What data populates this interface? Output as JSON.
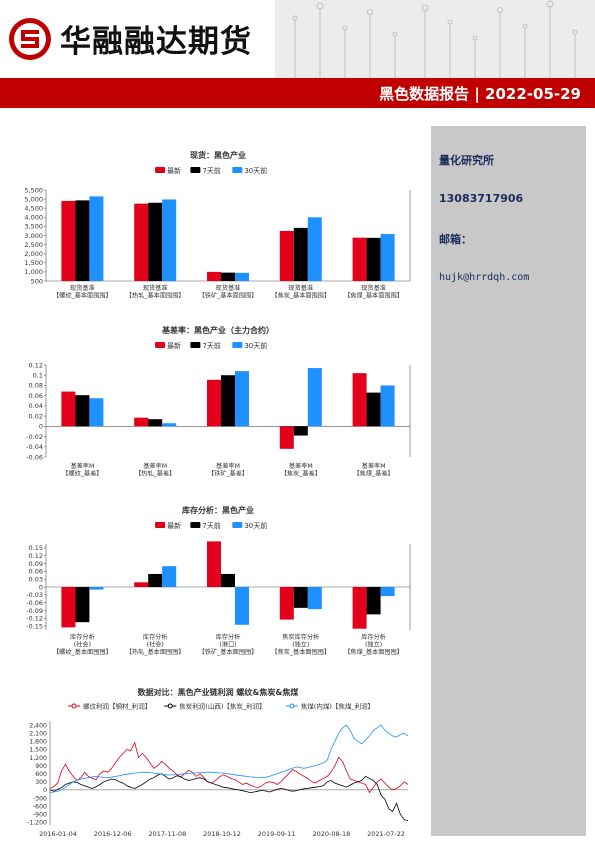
{
  "header": {
    "company": "华融融达期货",
    "report_title": "黑色数据报告 | 2022-05-29"
  },
  "sidebar": {
    "org": "量化研究所",
    "phone": "13083717906",
    "email_label": "邮箱：",
    "email": "hujk@hrrdqh.com"
  },
  "colors": {
    "latest": "#e3001b",
    "d7": "#000000",
    "d30": "#1e90ff",
    "brand_red": "#c00000"
  },
  "charts": [
    {
      "chart_data": {
        "type": "bar",
        "title": "现货：黑色产业",
        "legend": [
          "最新",
          "7天前",
          "30天前"
        ],
        "categories": [
          [
            "现货基准",
            "【螺纹_基本面囤囤】"
          ],
          [
            "现货基准",
            "【热轧_基本面囤囤】"
          ],
          [
            "现货基准",
            "【铁矿_基本面囤囤】"
          ],
          [
            "现货基准",
            "【焦炭_基本面囤囤】"
          ],
          [
            "现货基准",
            "【焦煤_基本面囤囤】"
          ]
        ],
        "series": [
          {
            "name": "最新",
            "values": [
              4900,
              4750,
              1000,
              3250,
              2880
            ]
          },
          {
            "name": "7天前",
            "values": [
              4930,
              4800,
              960,
              3420,
              2870
            ]
          },
          {
            "name": "30天前",
            "values": [
              5150,
              4980,
              950,
              4000,
              3080
            ]
          }
        ],
        "ylim": [
          500,
          5500
        ],
        "yticks": [
          "500",
          "1,000",
          "1,500",
          "2,000",
          "2,500",
          "3,000",
          "3,500",
          "4,000",
          "4,500",
          "5,000",
          "5,500"
        ],
        "tick_values": [
          500,
          1000,
          1500,
          2000,
          2500,
          3000,
          3500,
          4000,
          4500,
          5000,
          5500
        ]
      }
    },
    {
      "chart_data": {
        "type": "bar",
        "title": "基差率：黑色产业（主力合约）",
        "legend": [
          "最新",
          "7天前",
          "30天前"
        ],
        "categories": [
          [
            "基差率M",
            "【螺纹_基差】"
          ],
          [
            "基差率M",
            "【热轧_基差】"
          ],
          [
            "基差率M",
            "【铁矿_基差】"
          ],
          [
            "基差率M",
            "【焦炭_基差】"
          ],
          [
            "基差率M",
            "【焦煤_基差】"
          ]
        ],
        "series": [
          {
            "name": "最新",
            "values": [
              0.068,
              0.017,
              0.091,
              -0.044,
              0.104
            ]
          },
          {
            "name": "7天前",
            "values": [
              0.061,
              0.014,
              0.1,
              -0.018,
              0.066
            ]
          },
          {
            "name": "30天前",
            "values": [
              0.055,
              0.006,
              0.108,
              0.114,
              0.08
            ]
          }
        ],
        "ylim": [
          -0.06,
          0.12
        ],
        "yticks": [
          "0.12",
          "0.1",
          "0.08",
          "0.06",
          "0.04",
          "0.02",
          "0",
          "-0.02",
          "-0.04",
          "-0.06"
        ],
        "tick_values": [
          0.12,
          0.1,
          0.08,
          0.06,
          0.04,
          0.02,
          0,
          -0.02,
          -0.04,
          -0.06
        ]
      }
    },
    {
      "chart_data": {
        "type": "bar",
        "title": "库存分析：黑色产业",
        "legend": [
          "最新",
          "7天前",
          "30天前"
        ],
        "categories": [
          [
            "库存分析",
            "(社会)",
            "【螺纹_基本面囤囤】"
          ],
          [
            "库存分析",
            "(社会)",
            "【热轧_基本面囤囤】"
          ],
          [
            "库存分析",
            "(港口)",
            "【铁矿_基本面囤囤】"
          ],
          [
            "焦炭库存分析",
            "(独立)",
            "【焦炭_基本面囤囤】"
          ],
          [
            "库存分析",
            "(独立)",
            "【焦煤_基本面囤囤】"
          ]
        ],
        "series": [
          {
            "name": "最新",
            "values": [
              -0.155,
              0.018,
              0.175,
              -0.125,
              -0.16
            ]
          },
          {
            "name": "7天前",
            "values": [
              -0.135,
              0.05,
              0.05,
              -0.08,
              -0.105
            ]
          },
          {
            "name": "30天前",
            "values": [
              -0.01,
              0.08,
              -0.145,
              -0.085,
              -0.035
            ]
          }
        ],
        "ylim": [
          -0.165,
          0.165
        ],
        "yticks": [
          "0.15",
          "0.12",
          "0.09",
          "0.06",
          "0.03",
          "0",
          "-0.03",
          "-0.06",
          "-0.09",
          "-0.12",
          "-0.15"
        ],
        "tick_values": [
          0.15,
          0.12,
          0.09,
          0.06,
          0.03,
          0,
          -0.03,
          -0.06,
          -0.09,
          -0.12,
          -0.15
        ]
      }
    },
    {
      "chart_data": {
        "type": "line",
        "title": "数据对比：黑色产业链利润 螺纹&焦炭&焦煤",
        "legend": [
          "螺纹利润【钢材_利润】",
          "焦炭利润(山西)【焦炭_利润】",
          "焦煤(内煤)【焦煤_利润】"
        ],
        "x_labels": [
          "2016-01-04",
          "2016-12-06",
          "2017-11-08",
          "2018-10-12",
          "2019-09-11",
          "2020-08-18",
          "2021-07-22"
        ],
        "yticks": [
          "2,400",
          "2,100",
          "1,800",
          "1,500",
          "1,200",
          "900",
          "600",
          "300",
          "0",
          "-300",
          "-600",
          "-900",
          "-1,200"
        ],
        "tick_values": [
          2400,
          2100,
          1800,
          1500,
          1200,
          900,
          600,
          300,
          0,
          -300,
          -600,
          -900,
          -1200
        ],
        "ylim": [
          -1300,
          2550
        ],
        "series": [
          {
            "name": "螺纹利润【钢材_利润】",
            "color": "#e3001b",
            "values": [
              50,
              120,
              250,
              700,
              950,
              700,
              500,
              350,
              450,
              650,
              500,
              420,
              380,
              600,
              700,
              650,
              800,
              1000,
              1200,
              1350,
              1500,
              1450,
              1750,
              1200,
              1350,
              1200,
              1000,
              800,
              900,
              1050,
              950,
              800,
              700,
              550,
              480,
              600,
              720,
              650,
              500,
              600,
              450,
              300,
              250,
              350,
              480,
              560,
              500,
              420,
              380,
              300,
              200,
              250,
              180,
              120,
              80,
              150,
              250,
              300,
              280,
              200,
              300,
              450,
              600,
              750,
              680,
              580,
              500,
              420,
              300,
              250,
              350,
              420,
              500,
              650,
              900,
              1200,
              1050,
              700,
              400,
              350,
              300,
              250,
              200,
              -100,
              100,
              300,
              400,
              250,
              100,
              0,
              50,
              150,
              300,
              200
            ]
          },
          {
            "name": "焦炭利润(山西)【焦炭_利润】",
            "color": "#000000",
            "values": [
              0,
              -50,
              20,
              80,
              200,
              250,
              300,
              280,
              200,
              150,
              100,
              50,
              120,
              200,
              300,
              350,
              400,
              380,
              300,
              250,
              150,
              100,
              50,
              120,
              200,
              300,
              400,
              450,
              550,
              600,
              500,
              400,
              450,
              520,
              480,
              400,
              350,
              380,
              420,
              450,
              400,
              300,
              250,
              200,
              150,
              100,
              80,
              50,
              20,
              0,
              -30,
              -60,
              -100,
              -80,
              -50,
              -20,
              -40,
              -80,
              -30,
              20,
              50,
              30,
              -20,
              -50,
              -30,
              10,
              40,
              60,
              80,
              100,
              120,
              150,
              300,
              350,
              250,
              200,
              150,
              100,
              180,
              250,
              300,
              350,
              500,
              420,
              350,
              200,
              -200,
              -350,
              -700,
              -800,
              -500,
              -900,
              -1100,
              -1150
            ]
          },
          {
            "name": "焦煤(内煤)【焦煤_利润】",
            "color": "#1e90ff",
            "values": [
              -100,
              -80,
              -50,
              0,
              100,
              200,
              300,
              350,
              400,
              420,
              450,
              480,
              500,
              480,
              460,
              450,
              470,
              500,
              520,
              560,
              580,
              600,
              620,
              640,
              660,
              650,
              640,
              620,
              600,
              580,
              560,
              550,
              560,
              570,
              580,
              600,
              610,
              620,
              630,
              640,
              650,
              660,
              650,
              640,
              630,
              620,
              600,
              580,
              560,
              540,
              520,
              500,
              480,
              470,
              460,
              450,
              470,
              500,
              550,
              600,
              650,
              700,
              750,
              800,
              850,
              820,
              800,
              830,
              870,
              900,
              950,
              1000,
              1100,
              1500,
              1800,
              2100,
              2300,
              2400,
              2200,
              1900,
              1800,
              1700,
              1850,
              2000,
              2200,
              2300,
              2400,
              2200,
              2100,
              2000,
              1950,
              2050,
              2100,
              2000
            ]
          }
        ]
      }
    }
  ]
}
